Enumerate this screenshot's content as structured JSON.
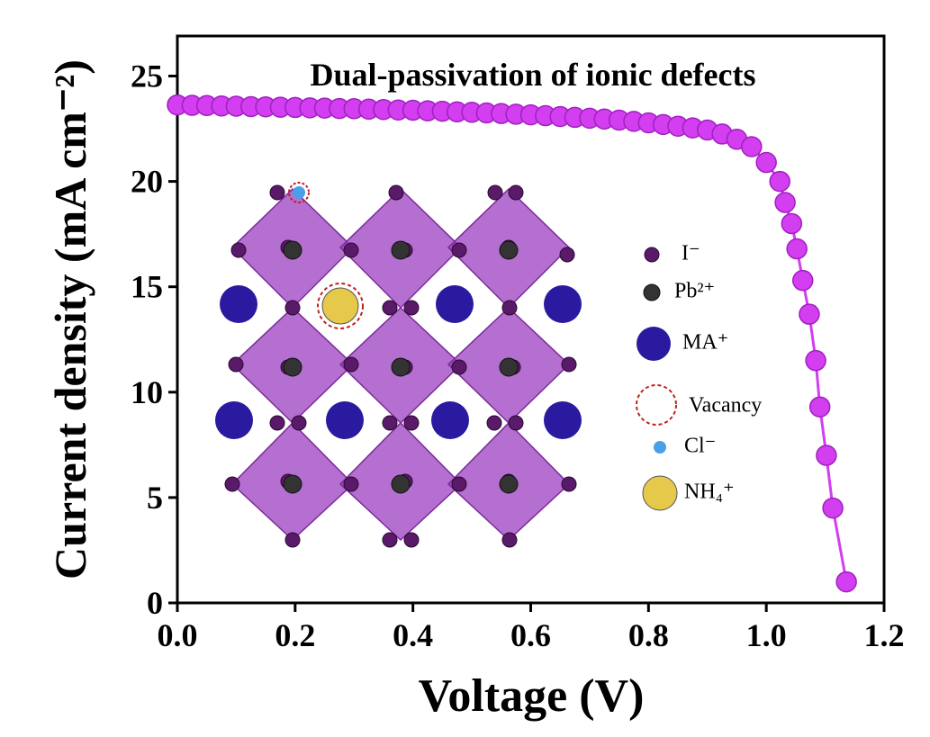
{
  "chart_data": {
    "type": "line",
    "title": "Dual-passivation of ionic defects",
    "x_label": "Voltage (V)",
    "y_label": "Current density (mA cm⁻²)",
    "x": [
      0,
      0.025,
      0.05,
      0.075,
      0.1,
      0.125,
      0.15,
      0.175,
      0.2,
      0.225,
      0.25,
      0.275,
      0.3,
      0.325,
      0.35,
      0.375,
      0.4,
      0.425,
      0.45,
      0.475,
      0.5,
      0.525,
      0.55,
      0.575,
      0.6,
      0.625,
      0.65,
      0.675,
      0.7,
      0.725,
      0.75,
      0.775,
      0.8,
      0.825,
      0.85,
      0.875,
      0.9,
      0.925,
      0.95,
      0.975,
      1.0,
      1.023,
      1.032,
      1.043,
      1.052,
      1.062,
      1.073,
      1.084,
      1.091,
      1.102,
      1.113,
      1.136
    ],
    "values": [
      23.63,
      23.61,
      23.6,
      23.58,
      23.57,
      23.55,
      23.54,
      23.52,
      23.51,
      23.49,
      23.48,
      23.46,
      23.45,
      23.43,
      23.41,
      23.39,
      23.38,
      23.35,
      23.33,
      23.3,
      23.28,
      23.25,
      23.22,
      23.19,
      23.16,
      23.12,
      23.08,
      23.04,
      23.0,
      22.96,
      22.91,
      22.85,
      22.78,
      22.7,
      22.62,
      22.54,
      22.44,
      22.25,
      22.0,
      21.65,
      20.9,
      20.0,
      19.0,
      18.0,
      16.8,
      15.3,
      13.7,
      11.5,
      9.3,
      7.0,
      4.5,
      1.0
    ],
    "color": "#d23ef0",
    "xlim": [
      0,
      1.2
    ],
    "ylim": [
      0,
      26.9
    ],
    "xticks": [
      {
        "value": 0,
        "label": "0.0"
      },
      0.2,
      0.4,
      0.6,
      0.8,
      {
        "value": 1,
        "label": "1.0"
      },
      1.2
    ],
    "yticks": [
      0,
      5,
      10,
      15,
      20,
      25
    ],
    "inset_legend": [
      "I⁻",
      "Pb²⁺",
      "MA⁺",
      "Vacancy",
      "Cl⁻",
      "NH₄⁺"
    ]
  }
}
